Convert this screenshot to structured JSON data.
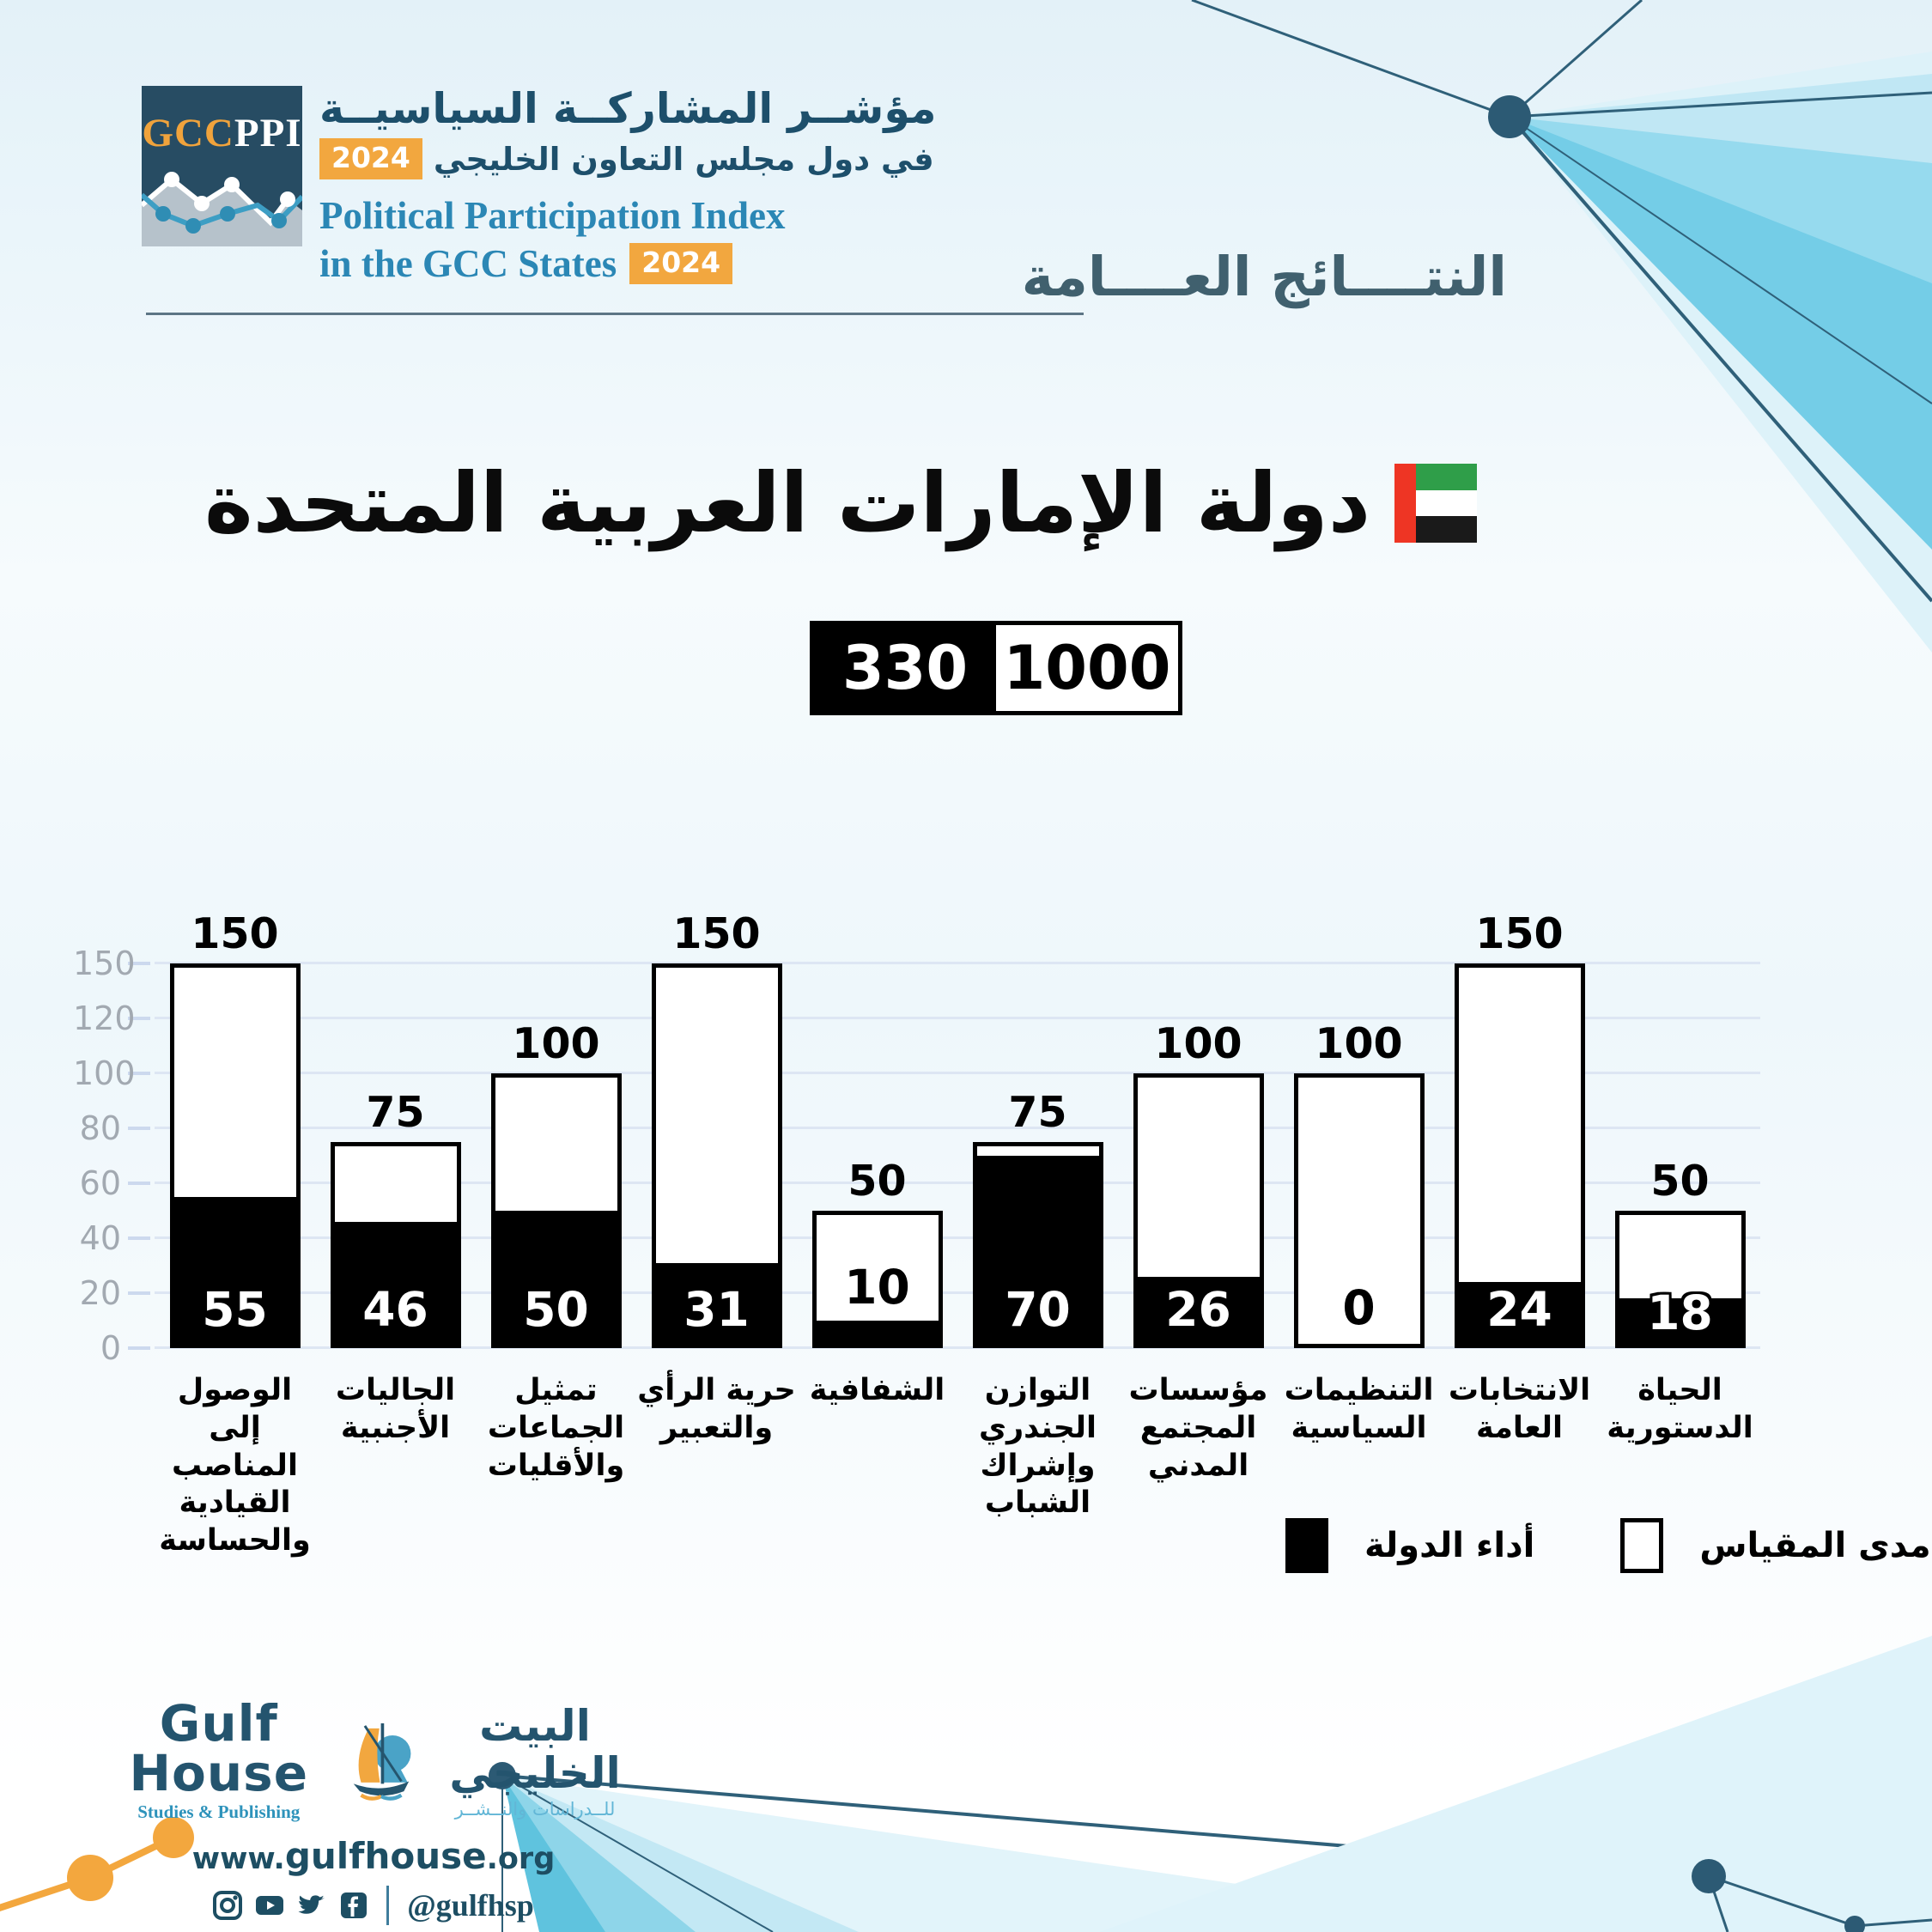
{
  "header": {
    "logo": {
      "gcc": "GCC",
      "ppi": "PPI"
    },
    "title_ar_line1": "مؤشــر المشاركــة السياسيــة",
    "title_ar_line2": "في دول مجلس التعاون الخليجي",
    "badge": "2024",
    "title_en_line1": "Political Participation Index",
    "title_en_line2": "in the GCC States",
    "section_heading": "النتــــائج العــــامة"
  },
  "country": {
    "name": "دولة الإمارات العربية المتحدة",
    "score": "330",
    "scale_max": "1000"
  },
  "legend": {
    "performance_label": "أداء الدولة",
    "scale_label": "مدى المقياس"
  },
  "chart_data": {
    "type": "bar",
    "title": "النتائج العامة — دولة الإمارات العربية المتحدة",
    "categories": [
      "الوصول إلى\nالمناصب القيادية\nوالحساسة",
      "الجاليات\nالأجنبية",
      "تمثيل الجماعات\nوالأقليات",
      "حرية الرأي\nوالتعبير",
      "الشفافية",
      "التوازن الجندري\nوإشراك الشباب",
      "مؤسسات\nالمجتمع\nالمدني",
      "التنظيمات\nالسياسية",
      "الانتخابات\nالعامة",
      "الحياة\nالدستورية"
    ],
    "series": [
      {
        "name": "أداء الدولة",
        "color": "#000000",
        "values": [
          55,
          46,
          50,
          31,
          10,
          70,
          26,
          0,
          24,
          18
        ]
      },
      {
        "name": "مدى المقياس",
        "color": "#ffffff",
        "values": [
          150,
          75,
          100,
          150,
          50,
          75,
          100,
          100,
          150,
          50
        ]
      }
    ],
    "yticks": [
      0,
      20,
      40,
      60,
      80,
      100,
      120,
      150
    ],
    "ylim": [
      0,
      150
    ],
    "grid": true,
    "legend_position": "bottom-right",
    "axis_note": "equal visual spacing per tick; 120→150 compressed into one step",
    "totals": {
      "score": 330,
      "scale_max": 1000
    }
  },
  "colors": {
    "accent_orange": "#f2a73f",
    "dark_teal": "#1d4f6b",
    "blue": "#2b87b5",
    "heading": "#40606e",
    "gridline": "#dde6f3",
    "flag_red": "#ee3524",
    "flag_green": "#2f9e49",
    "flag_black": "#1a1a1a"
  },
  "footer": {
    "brand_en": "Gulf House",
    "brand_en_sub": "Studies & Publishing",
    "brand_ar": "البيت الخليجي",
    "brand_ar_sub": "للــدراسات والنــشــر",
    "website_www": "www.",
    "website_name": "gulfhouse",
    "website_tld": ".org",
    "social_handle": "@gulfhsp"
  }
}
